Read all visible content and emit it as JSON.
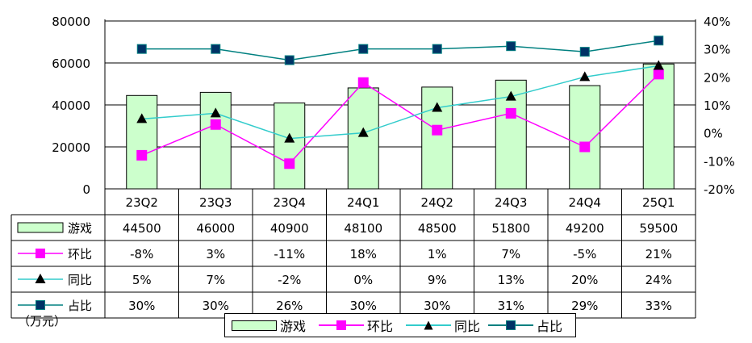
{
  "chart_data": {
    "type": "bar",
    "categories": [
      "23Q2",
      "23Q3",
      "23Q4",
      "24Q1",
      "24Q2",
      "24Q3",
      "24Q4",
      "25Q1"
    ],
    "left_axis": {
      "ylim": [
        0,
        80000
      ],
      "ticks": [
        "0",
        "20000",
        "40000",
        "60000",
        "80000"
      ],
      "tick_values": [
        0,
        20000,
        40000,
        60000,
        80000
      ]
    },
    "right_axis": {
      "ylim": [
        -20,
        40
      ],
      "ticks": [
        "-20%",
        "-10%",
        "0%",
        "10%",
        "20%",
        "30%",
        "40%"
      ],
      "tick_values": [
        -20,
        -10,
        0,
        10,
        20,
        30,
        40
      ]
    },
    "grid": true,
    "unit_label": "（万元）",
    "series": [
      {
        "name": "游戏",
        "type": "bar",
        "axis": "left",
        "color": "#ccffcc",
        "values": [
          44500,
          46000,
          40900,
          48100,
          48500,
          51800,
          49200,
          59500
        ],
        "labels": [
          "44500",
          "46000",
          "40900",
          "48100",
          "48500",
          "51800",
          "49200",
          "59500"
        ]
      },
      {
        "name": "环比",
        "type": "line",
        "axis": "right",
        "color": "#ff00ff",
        "marker": "square",
        "values": [
          -8,
          3,
          -11,
          18,
          1,
          7,
          -5,
          21
        ],
        "labels": [
          "-8%",
          "3%",
          "-11%",
          "18%",
          "1%",
          "7%",
          "-5%",
          "21%"
        ]
      },
      {
        "name": "同比",
        "type": "line",
        "axis": "right",
        "color": "#33cccc",
        "marker": "triangle",
        "values": [
          5,
          7,
          -2,
          0,
          9,
          13,
          20,
          24
        ],
        "labels": [
          "5%",
          "7%",
          "-2%",
          "0%",
          "9%",
          "13%",
          "20%",
          "24%"
        ]
      },
      {
        "name": "占比",
        "type": "line",
        "axis": "right",
        "color": "#008080",
        "marker": "square-dark",
        "values": [
          30,
          30,
          26,
          30,
          30,
          31,
          29,
          33
        ],
        "labels": [
          "30%",
          "30%",
          "26%",
          "30%",
          "30%",
          "31%",
          "29%",
          "33%"
        ]
      }
    ],
    "legend_position": "bottom"
  },
  "colors": {
    "marker_dark": "#003366",
    "triangle_marker": "#000000"
  }
}
